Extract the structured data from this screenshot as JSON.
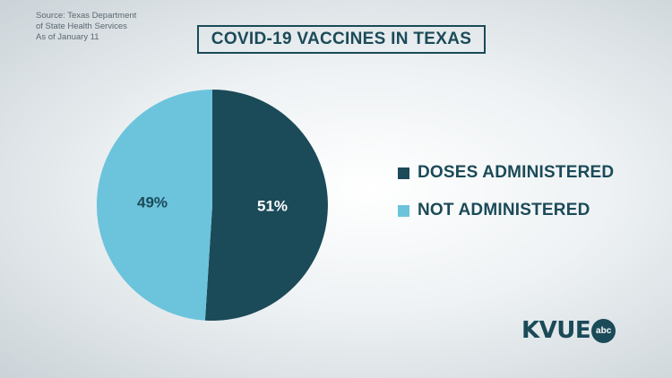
{
  "source": {
    "lines": [
      "Source: Texas Department",
      "of State Health Services",
      "As of January 11"
    ]
  },
  "chart_data": {
    "type": "pie",
    "title": "COVID-19 VACCINES IN TEXAS",
    "slices": [
      {
        "label": "DOSES ADMINISTERED",
        "value": 51,
        "display": "51%",
        "color": "#1b4a58"
      },
      {
        "label": "NOT ADMINISTERED",
        "value": 49,
        "display": "49%",
        "color": "#6cc3dc"
      }
    ],
    "legend_position": "right"
  },
  "logo": {
    "text": "KVUE",
    "badge": "abc"
  }
}
